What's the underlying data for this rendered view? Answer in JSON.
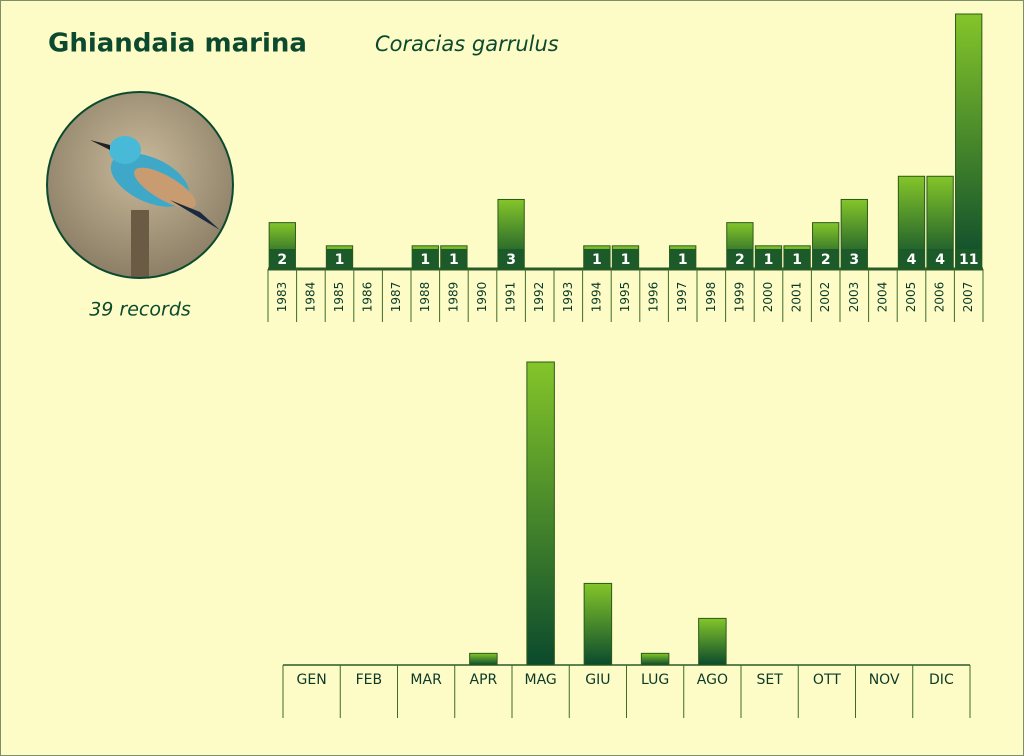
{
  "chart_data": [
    {
      "type": "bar",
      "title": "Ghiandaia marina",
      "subtitle": "Coracias garrulus",
      "note": "39 records",
      "categories": [
        "1983",
        "1984",
        "1985",
        "1986",
        "1987",
        "1988",
        "1989",
        "1990",
        "1991",
        "1992",
        "1993",
        "1994",
        "1995",
        "1996",
        "1997",
        "1998",
        "1999",
        "2000",
        "2001",
        "2002",
        "2003",
        "2004",
        "2005",
        "2006",
        "2007"
      ],
      "values": [
        2,
        0,
        1,
        0,
        0,
        1,
        1,
        0,
        3,
        0,
        0,
        1,
        1,
        0,
        1,
        0,
        2,
        1,
        1,
        2,
        3,
        0,
        4,
        4,
        11
      ],
      "ylim": [
        0,
        11
      ],
      "color": "#6aad2a"
    },
    {
      "type": "bar",
      "categories": [
        "GEN",
        "FEB",
        "MAR",
        "APR",
        "MAG",
        "GIU",
        "LUG",
        "AGO",
        "SET",
        "OTT",
        "NOV",
        "DIC"
      ],
      "values": [
        0,
        0,
        0,
        1,
        26,
        7,
        1,
        4,
        0,
        0,
        0,
        0
      ],
      "ylim": [
        0,
        26
      ],
      "color": "#6aad2a"
    }
  ]
}
